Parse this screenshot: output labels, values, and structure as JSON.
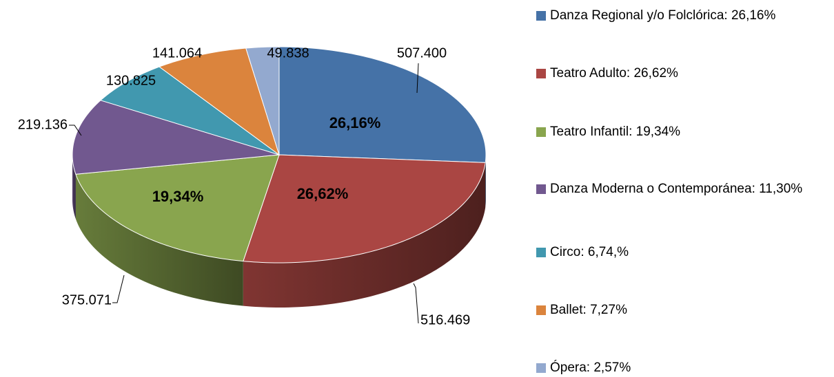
{
  "chart_data": {
    "type": "pie3d",
    "categories": [
      "Danza Regional y/o Folclórica: 26,16%",
      "Teatro Adulto:  26,62%",
      "Teatro Infantil: 19,34%",
      "Danza Moderna o Contemporánea: 11,30%",
      "Circo:  6,74,%",
      "Ballet:  7,27%",
      "Ópera:  2,57%"
    ],
    "values": [
      507400,
      516469,
      375071,
      219136,
      130825,
      141064,
      49838
    ],
    "value_labels": [
      "507.400",
      "516.469",
      "375.071",
      "219.136",
      "130.825",
      "141.064",
      "49.838"
    ],
    "percent_labels": [
      "26,16%",
      "26,62%",
      "19,34%",
      null,
      null,
      null,
      null
    ],
    "colors": [
      "#4572a7",
      "#aa4643",
      "#89a54e",
      "#71588f",
      "#4198af",
      "#db843d",
      "#93a9cf"
    ],
    "legend": "right"
  }
}
